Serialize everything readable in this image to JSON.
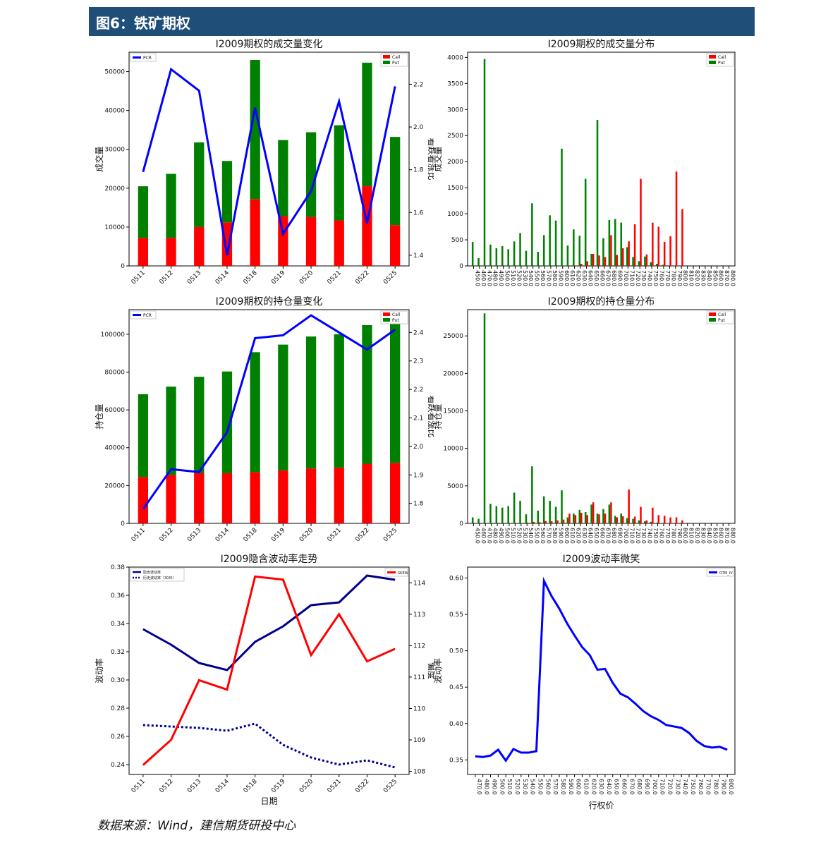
{
  "header": {
    "title": "图6：铁矿期权"
  },
  "source": "数据来源：Wind，建信期货研投中心",
  "chart_data": [
    {
      "id": "volume-trend",
      "type": "bar",
      "title": "I2009期权的成交量变化",
      "categories": [
        "0511",
        "0512",
        "0513",
        "0514",
        "0518",
        "0519",
        "0520",
        "0521",
        "0522",
        "0525"
      ],
      "series": [
        {
          "name": "Call",
          "type": "bar",
          "stacked": true,
          "color": "#ff0000",
          "values": [
            7200,
            7200,
            10000,
            11200,
            17200,
            12800,
            12600,
            11700,
            20500,
            10500
          ]
        },
        {
          "name": "Put",
          "type": "bar",
          "stacked": true,
          "color": "#008000",
          "values": [
            13300,
            16500,
            21800,
            15800,
            35800,
            19600,
            21800,
            24500,
            31800,
            22700
          ]
        },
        {
          "name": "PCR",
          "type": "line",
          "axis": "right",
          "color": "#0000ff",
          "values": [
            1.79,
            2.27,
            2.17,
            1.4,
            2.09,
            1.5,
            1.7,
            2.12,
            1.55,
            2.19
          ]
        }
      ],
      "ylabel": "成交量",
      "ylabel_right": "看跌看涨比",
      "ylim": [
        0,
        55000
      ],
      "yticks": [
        0,
        10000,
        20000,
        30000,
        40000,
        50000
      ],
      "ylim_right": [
        1.35,
        2.35
      ],
      "yticks_right": [
        1.4,
        1.6,
        1.8,
        2.0,
        2.2
      ],
      "legend": {
        "line": "top-left",
        "bars": "top-right"
      }
    },
    {
      "id": "volume-distribution",
      "type": "bar",
      "title": "I2009期权的成交量分布",
      "categories": [
        "450.0",
        "460.0",
        "470.0",
        "480.0",
        "490.0",
        "500.0",
        "510.0",
        "520.0",
        "530.0",
        "540.0",
        "550.0",
        "560.0",
        "570.0",
        "580.0",
        "590.0",
        "600.0",
        "610.0",
        "620.0",
        "630.0",
        "640.0",
        "650.0",
        "660.0",
        "670.0",
        "680.0",
        "690.0",
        "700.0",
        "710.0",
        "720.0",
        "730.0",
        "740.0",
        "750.0",
        "760.0",
        "770.0",
        "780.0",
        "790.0",
        "800.0",
        "810.0",
        "820.0",
        "830.0",
        "840.0",
        "850.0",
        "860.0",
        "870.0",
        "880.0"
      ],
      "series": [
        {
          "name": "Call",
          "color": "#ff0000",
          "values": [
            0,
            0,
            0,
            0,
            0,
            0,
            0,
            0,
            0,
            0,
            0,
            0,
            0,
            0,
            0,
            0,
            0,
            10,
            40,
            90,
            230,
            200,
            170,
            590,
            210,
            340,
            470,
            800,
            1670,
            220,
            830,
            750,
            460,
            570,
            1810,
            1090,
            0,
            0,
            0,
            0,
            0,
            0,
            0,
            0
          ]
        },
        {
          "name": "Put",
          "color": "#008000",
          "values": [
            460,
            150,
            3970,
            410,
            340,
            380,
            320,
            470,
            630,
            290,
            1200,
            270,
            590,
            970,
            870,
            2250,
            390,
            700,
            580,
            1670,
            230,
            2800,
            530,
            880,
            900,
            830,
            360,
            170,
            90,
            180,
            70,
            40,
            20,
            0,
            0,
            0,
            0,
            0,
            0,
            0,
            0,
            0,
            0,
            0
          ]
        }
      ],
      "ylabel": "成交量",
      "ylim": [
        0,
        4100
      ],
      "yticks": [
        0,
        500,
        1000,
        1500,
        2000,
        2500,
        3000,
        3500,
        4000
      ],
      "legend": "top-right"
    },
    {
      "id": "oi-trend",
      "type": "bar",
      "title": "I2009期权的持仓量变化",
      "categories": [
        "0511",
        "0512",
        "0513",
        "0514",
        "0518",
        "0519",
        "0520",
        "0521",
        "0522",
        "0525"
      ],
      "series": [
        {
          "name": "Call",
          "type": "bar",
          "stacked": true,
          "color": "#ff0000",
          "values": [
            24500,
            25500,
            26500,
            26500,
            27000,
            28000,
            29000,
            29500,
            31500,
            32000
          ]
        },
        {
          "name": "Put",
          "type": "bar",
          "stacked": true,
          "color": "#008000",
          "values": [
            43800,
            46800,
            51000,
            53800,
            63500,
            66500,
            69800,
            70500,
            73300,
            74500
          ]
        },
        {
          "name": "PCR",
          "type": "line",
          "axis": "right",
          "color": "#0000ff",
          "values": [
            1.78,
            1.92,
            1.91,
            2.05,
            2.38,
            2.39,
            2.46,
            2.4,
            2.34,
            2.41
          ]
        }
      ],
      "ylabel": "持仓量",
      "ylabel_right": "看跌看涨比",
      "ylim": [
        0,
        113000
      ],
      "yticks": [
        0,
        20000,
        40000,
        60000,
        80000,
        100000
      ],
      "ylim_right": [
        1.73,
        2.48
      ],
      "yticks_right": [
        1.8,
        1.9,
        2.0,
        2.1,
        2.2,
        2.3,
        2.4
      ],
      "legend": {
        "line": "top-left",
        "bars": "top-right"
      }
    },
    {
      "id": "oi-distribution",
      "type": "bar",
      "title": "I2009期权的持仓量分布",
      "categories": [
        "450.0",
        "460.0",
        "470.0",
        "480.0",
        "490.0",
        "500.0",
        "510.0",
        "520.0",
        "530.0",
        "540.0",
        "550.0",
        "560.0",
        "570.0",
        "580.0",
        "590.0",
        "600.0",
        "610.0",
        "620.0",
        "630.0",
        "640.0",
        "650.0",
        "660.0",
        "670.0",
        "680.0",
        "690.0",
        "700.0",
        "710.0",
        "720.0",
        "730.0",
        "740.0",
        "750.0",
        "760.0",
        "770.0",
        "780.0",
        "790.0",
        "800.0",
        "810.0",
        "820.0",
        "830.0",
        "840.0",
        "850.0",
        "860.0",
        "870.0",
        "880.0"
      ],
      "series": [
        {
          "name": "Call",
          "color": "#ff0000",
          "values": [
            0,
            0,
            0,
            0,
            0,
            0,
            0,
            0,
            50,
            100,
            200,
            150,
            300,
            300,
            400,
            500,
            1300,
            1100,
            1400,
            1100,
            2800,
            1200,
            1300,
            2800,
            800,
            950,
            4500,
            900,
            2200,
            400,
            2100,
            1100,
            1000,
            800,
            800,
            400,
            0,
            0,
            0,
            0,
            0,
            0,
            0,
            0
          ]
        },
        {
          "name": "Put",
          "color": "#008000",
          "values": [
            800,
            600,
            28000,
            2600,
            2300,
            2100,
            2300,
            4100,
            3000,
            1200,
            7600,
            1700,
            3600,
            3000,
            2200,
            4400,
            800,
            1300,
            1800,
            1500,
            2500,
            1300,
            1900,
            2500,
            1000,
            1300,
            700,
            600,
            400,
            300,
            200,
            100,
            50,
            50,
            0,
            0,
            0,
            0,
            0,
            0,
            0,
            0,
            0,
            0
          ]
        }
      ],
      "ylabel": "持仓量",
      "ylim": [
        0,
        28500
      ],
      "yticks": [
        0,
        5000,
        10000,
        15000,
        20000,
        25000
      ],
      "legend": "top-right"
    },
    {
      "id": "iv-trend",
      "type": "line",
      "title": "I2009隐含波动率走势",
      "categories": [
        "0511",
        "0512",
        "0513",
        "0514",
        "0518",
        "0519",
        "0520",
        "0521",
        "0522",
        "0525"
      ],
      "series": [
        {
          "name": "隐含波动率",
          "axis": "left",
          "color": "#00008b",
          "style": "solid",
          "values": [
            0.336,
            0.325,
            0.312,
            0.307,
            0.327,
            0.338,
            0.353,
            0.355,
            0.374,
            0.371
          ]
        },
        {
          "name": "历史波动率（30日）",
          "axis": "left",
          "color": "#00008b",
          "style": "dotted",
          "values": [
            0.268,
            0.267,
            0.266,
            0.264,
            0.269,
            0.254,
            0.245,
            0.24,
            0.243,
            0.238
          ]
        },
        {
          "name": "SKEW",
          "axis": "right",
          "color": "#ff0000",
          "style": "solid",
          "values": [
            108.2,
            109.0,
            110.9,
            110.6,
            114.2,
            114.1,
            111.7,
            113.0,
            111.5,
            111.9
          ]
        }
      ],
      "xlabel": "日期",
      "ylabel": "波动率",
      "ylabel_right": "偏度",
      "ylim": [
        0.233,
        0.38
      ],
      "yticks": [
        0.24,
        0.26,
        0.28,
        0.3,
        0.32,
        0.34,
        0.36,
        0.38
      ],
      "ylim_right": [
        107.9,
        114.5
      ],
      "yticks_right": [
        108,
        109,
        110,
        111,
        112,
        113,
        114
      ],
      "legend": {
        "left": "top-left",
        "right": "top-right"
      }
    },
    {
      "id": "vol-smile",
      "type": "line",
      "title": "I2009波动率微笑",
      "categories": [
        "470.0",
        "480.0",
        "490.0",
        "500.0",
        "510.0",
        "520.0",
        "530.0",
        "540.0",
        "550.0",
        "560.0",
        "570.0",
        "580.0",
        "590.0",
        "600.0",
        "610.0",
        "620.0",
        "630.0",
        "640.0",
        "650.0",
        "660.0",
        "670.0",
        "680.0",
        "690.0",
        "700.0",
        "710.0",
        "720.0",
        "730.0",
        "740.0",
        "750.0",
        "760.0",
        "770.0",
        "780.0",
        "790.0",
        "800.0"
      ],
      "series": [
        {
          "name": "OTM_IV",
          "color": "#0000ff",
          "values": [
            0.355,
            0.354,
            0.356,
            0.364,
            0.349,
            0.365,
            0.36,
            0.36,
            0.362,
            0.596,
            0.575,
            0.558,
            0.538,
            0.521,
            0.505,
            0.494,
            0.474,
            0.475,
            0.456,
            0.441,
            0.436,
            0.427,
            0.417,
            0.41,
            0.405,
            0.398,
            0.396,
            0.394,
            0.387,
            0.376,
            0.369,
            0.367,
            0.368,
            0.364
          ]
        }
      ],
      "xlabel": "行权价",
      "ylabel": "波动率",
      "ylim": [
        0.33,
        0.615
      ],
      "yticks": [
        0.35,
        0.4,
        0.45,
        0.5,
        0.55,
        0.6
      ],
      "legend": "top-right"
    }
  ]
}
